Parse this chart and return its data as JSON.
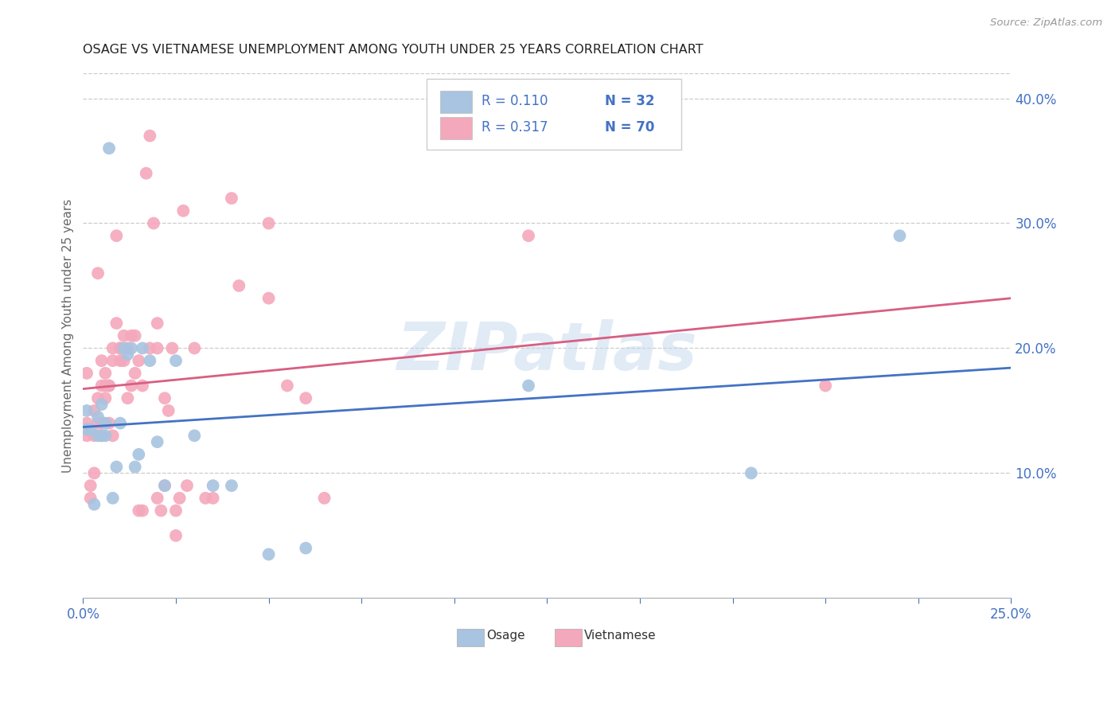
{
  "title": "OSAGE VS VIETNAMESE UNEMPLOYMENT AMONG YOUTH UNDER 25 YEARS CORRELATION CHART",
  "source": "Source: ZipAtlas.com",
  "ylabel": "Unemployment Among Youth under 25 years",
  "ylabel_right_vals": [
    0.1,
    0.2,
    0.3,
    0.4
  ],
  "xlim": [
    0.0,
    0.25
  ],
  "ylim": [
    0.0,
    0.42
  ],
  "osage_color": "#a8c4e0",
  "vietnamese_color": "#f4a8bc",
  "osage_line_color": "#4472c4",
  "vietnamese_line_color": "#d75f82",
  "legend_R_osage": "R = 0.110",
  "legend_N_osage": "N = 32",
  "legend_R_viet": "R = 0.317",
  "legend_N_viet": "N = 70",
  "watermark": "ZIPatlas",
  "osage_x": [
    0.001,
    0.001,
    0.002,
    0.003,
    0.004,
    0.004,
    0.005,
    0.005,
    0.006,
    0.006,
    0.007,
    0.008,
    0.009,
    0.01,
    0.011,
    0.012,
    0.013,
    0.014,
    0.015,
    0.016,
    0.018,
    0.02,
    0.022,
    0.025,
    0.03,
    0.035,
    0.04,
    0.05,
    0.06,
    0.12,
    0.18,
    0.22
  ],
  "osage_y": [
    0.135,
    0.15,
    0.135,
    0.075,
    0.13,
    0.145,
    0.13,
    0.155,
    0.13,
    0.14,
    0.36,
    0.08,
    0.105,
    0.14,
    0.2,
    0.195,
    0.2,
    0.105,
    0.115,
    0.2,
    0.19,
    0.125,
    0.09,
    0.19,
    0.13,
    0.09,
    0.09,
    0.035,
    0.04,
    0.17,
    0.1,
    0.29
  ],
  "vietnamese_x": [
    0.001,
    0.001,
    0.001,
    0.002,
    0.002,
    0.003,
    0.003,
    0.003,
    0.004,
    0.004,
    0.004,
    0.005,
    0.005,
    0.005,
    0.005,
    0.006,
    0.006,
    0.006,
    0.007,
    0.007,
    0.007,
    0.008,
    0.008,
    0.008,
    0.009,
    0.009,
    0.01,
    0.01,
    0.01,
    0.011,
    0.011,
    0.012,
    0.012,
    0.013,
    0.013,
    0.014,
    0.014,
    0.015,
    0.015,
    0.016,
    0.016,
    0.017,
    0.018,
    0.018,
    0.019,
    0.02,
    0.02,
    0.02,
    0.021,
    0.022,
    0.022,
    0.023,
    0.024,
    0.025,
    0.025,
    0.026,
    0.027,
    0.028,
    0.03,
    0.033,
    0.035,
    0.04,
    0.042,
    0.05,
    0.05,
    0.055,
    0.06,
    0.065,
    0.12,
    0.2
  ],
  "vietnamese_y": [
    0.13,
    0.14,
    0.18,
    0.09,
    0.08,
    0.15,
    0.13,
    0.1,
    0.26,
    0.14,
    0.16,
    0.17,
    0.14,
    0.13,
    0.19,
    0.16,
    0.17,
    0.18,
    0.17,
    0.17,
    0.14,
    0.13,
    0.19,
    0.2,
    0.29,
    0.22,
    0.2,
    0.19,
    0.2,
    0.21,
    0.19,
    0.2,
    0.16,
    0.17,
    0.21,
    0.18,
    0.21,
    0.07,
    0.19,
    0.07,
    0.17,
    0.34,
    0.2,
    0.37,
    0.3,
    0.2,
    0.08,
    0.22,
    0.07,
    0.09,
    0.16,
    0.15,
    0.2,
    0.07,
    0.05,
    0.08,
    0.31,
    0.09,
    0.2,
    0.08,
    0.08,
    0.32,
    0.25,
    0.3,
    0.24,
    0.17,
    0.16,
    0.08,
    0.29,
    0.17
  ]
}
